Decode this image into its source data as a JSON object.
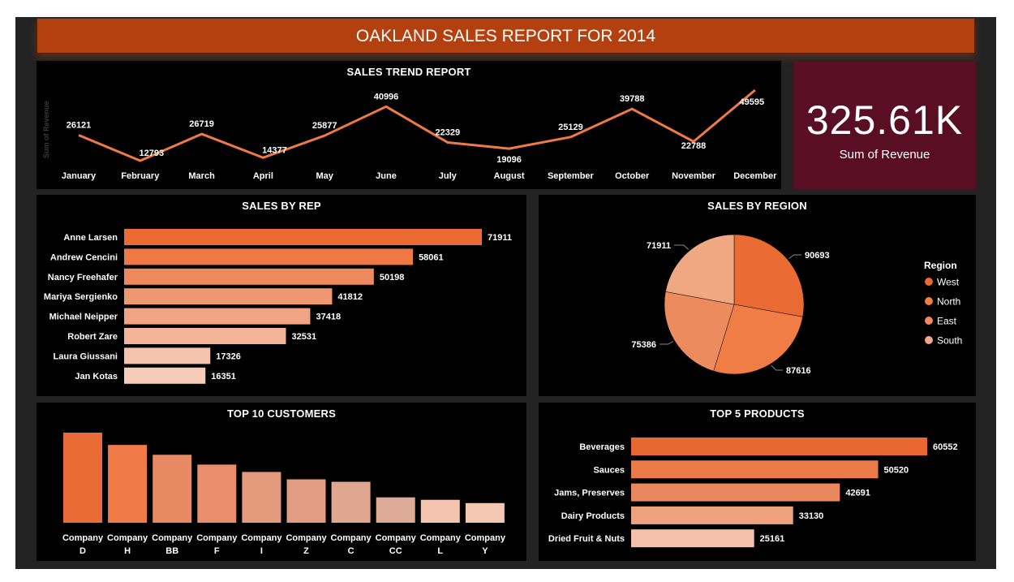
{
  "header": {
    "title": "OAKLAND SALES REPORT FOR 2014"
  },
  "kpi": {
    "value": "325.61K",
    "label": "Sum of Revenue"
  },
  "charts": {
    "trend": {
      "title": "SALES TREND REPORT",
      "ylabel": "Sum of Revenue",
      "line_color": "#f07a46"
    },
    "rep": {
      "title": "SALES BY REP"
    },
    "region": {
      "title": "SALES BY REGION",
      "legend_title": "Region"
    },
    "customers": {
      "title": "TOP 10 CUSTOMERS"
    },
    "products": {
      "title": "TOP 5 PRODUCTS"
    }
  },
  "chart_data": [
    {
      "type": "line",
      "title": "SALES TREND REPORT",
      "ylabel": "Sum of Revenue",
      "categories": [
        "January",
        "February",
        "March",
        "April",
        "May",
        "June",
        "July",
        "August",
        "September",
        "October",
        "November",
        "December"
      ],
      "values": [
        26121,
        12793,
        26719,
        14377,
        25877,
        40996,
        22329,
        19096,
        25129,
        39788,
        22788,
        49595
      ],
      "labels": [
        "26121",
        "12793",
        "26719",
        "14377",
        "25877",
        "40996",
        "22329",
        "19096",
        "25129",
        "39788",
        "22788",
        "49595"
      ]
    },
    {
      "type": "bar",
      "orientation": "horizontal",
      "title": "SALES BY REP",
      "categories": [
        "Anne Larsen",
        "Andrew Cencini",
        "Nancy Freehafer",
        "Mariya Sergienko",
        "Michael Neipper",
        "Robert Zare",
        "Laura Giussani",
        "Jan Kotas"
      ],
      "values": [
        71911,
        58061,
        50198,
        41812,
        37418,
        32531,
        17326,
        16351
      ],
      "labels": [
        "71911",
        "58061",
        "50198",
        "41812",
        "37418",
        "32531",
        "17326",
        "16351"
      ],
      "colors": [
        "#ec6b34",
        "#ef7845",
        "#ec8a5d",
        "#ed9870",
        "#f0a483",
        "#f3b498",
        "#f5c3ad",
        "#f6ccb8"
      ]
    },
    {
      "type": "pie",
      "title": "SALES BY REGION",
      "legend_title": "Region",
      "legend_position": "right",
      "categories": [
        "West",
        "North",
        "East",
        "South"
      ],
      "values": [
        90693,
        87616,
        75386,
        71911
      ],
      "labels": [
        "90693",
        "87616",
        "75386",
        "71911"
      ],
      "colors": [
        "#ea6a33",
        "#f07c46",
        "#ec8b5e",
        "#efa882"
      ]
    },
    {
      "type": "bar",
      "orientation": "vertical",
      "title": "TOP 10 CUSTOMERS",
      "categories": [
        "Company D",
        "Company H",
        "Company BB",
        "Company F",
        "Company I",
        "Company Z",
        "Company C",
        "Company CC",
        "Company L",
        "Company Y"
      ],
      "values": [
        11000,
        9500,
        8300,
        7100,
        6200,
        5300,
        5000,
        3100,
        2800,
        2400
      ],
      "category_lines": [
        [
          "Company",
          "D"
        ],
        [
          "Company",
          "H"
        ],
        [
          "Company",
          "BB"
        ],
        [
          "Company",
          "F"
        ],
        [
          "Company",
          "I"
        ],
        [
          "Company",
          "Z"
        ],
        [
          "Company",
          "C"
        ],
        [
          "Company",
          "CC"
        ],
        [
          "Company",
          "L"
        ],
        [
          "Company",
          "Y"
        ]
      ],
      "colors": [
        "#ea6b36",
        "#f07b48",
        "#e78a64",
        "#e88e6c",
        "#e39a7d",
        "#e29c81",
        "#e0a790",
        "#dcaa96",
        "#f4c4b0",
        "#f5c6b2"
      ]
    },
    {
      "type": "bar",
      "orientation": "horizontal",
      "title": "TOP 5 PRODUCTS",
      "categories": [
        "Beverages",
        "Sauces",
        "Jams, Preserves",
        "Dairy Products",
        "Dried Fruit & Nuts"
      ],
      "values": [
        60552,
        50520,
        42691,
        33130,
        25161
      ],
      "labels": [
        "60552",
        "50520",
        "42691",
        "33130",
        "25161"
      ],
      "colors": [
        "#e96730",
        "#ec7b4a",
        "#e9875f",
        "#f0a27f",
        "#f4c2ac"
      ]
    }
  ]
}
